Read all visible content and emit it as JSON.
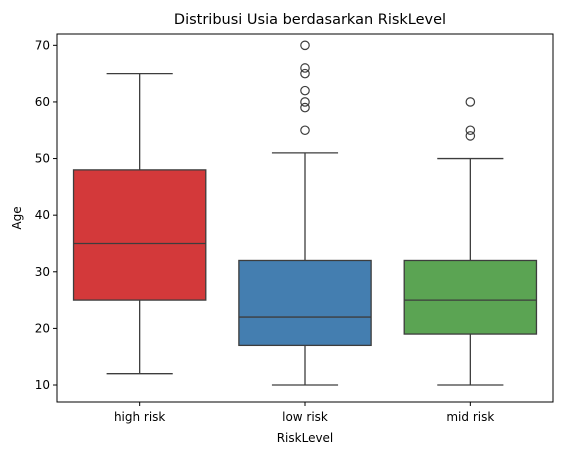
{
  "chart_data": {
    "type": "box",
    "title": "Distribusi Usia berdasarkan RiskLevel",
    "xlabel": "RiskLevel",
    "ylabel": "Age",
    "ylim": [
      7,
      72
    ],
    "yticks": [
      10,
      20,
      30,
      40,
      50,
      60,
      70
    ],
    "grid": false,
    "categories": [
      "high risk",
      "low risk",
      "mid risk"
    ],
    "boxes": [
      {
        "category": "high risk",
        "whisker_low": 12,
        "q1": 25,
        "median": 35,
        "q3": 48,
        "whisker_high": 65,
        "outliers": [],
        "color": "#d3393a"
      },
      {
        "category": "low risk",
        "whisker_low": 10,
        "q1": 17,
        "median": 22,
        "q3": 32,
        "whisker_high": 51,
        "outliers": [
          55,
          59,
          60,
          62,
          65,
          66,
          70
        ],
        "color": "#447eb0"
      },
      {
        "category": "mid risk",
        "whisker_low": 10,
        "q1": 19,
        "median": 25,
        "q3": 32,
        "whisker_high": 50,
        "outliers": [
          54,
          55,
          60
        ],
        "color": "#5ba453"
      }
    ]
  }
}
